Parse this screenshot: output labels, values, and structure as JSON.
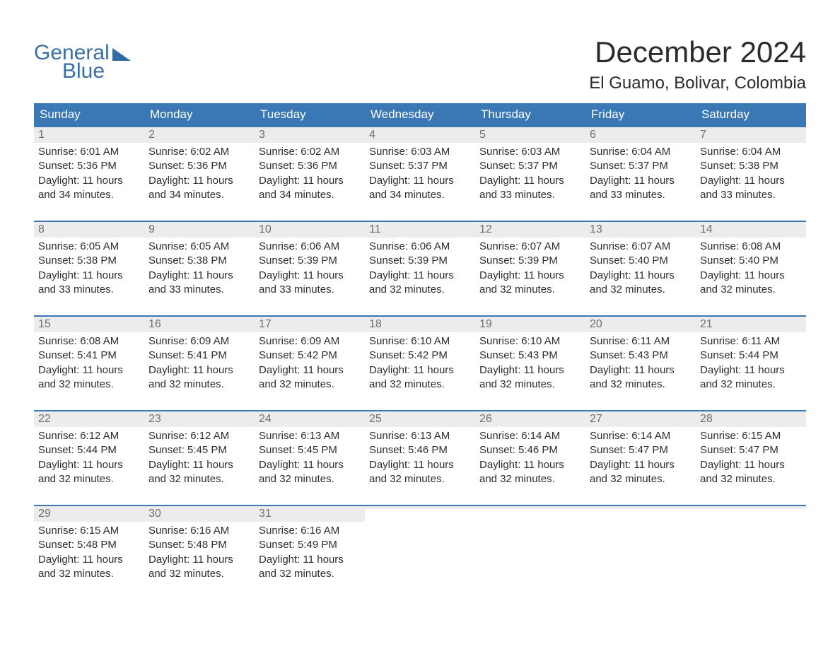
{
  "logo": {
    "line1": "General",
    "line2": "Blue"
  },
  "title": "December 2024",
  "location": "El Guamo, Bolivar, Colombia",
  "colors": {
    "header_bg": "#3a78b5",
    "header_text": "#ffffff",
    "border": "#3a78b5",
    "daynum_bg": "#ececec",
    "daynum_text": "#6f6f6f",
    "body_text": "#2e2e2e",
    "logo_color": "#3a6fa5",
    "background": "#ffffff"
  },
  "day_labels": [
    "Sunday",
    "Monday",
    "Tuesday",
    "Wednesday",
    "Thursday",
    "Friday",
    "Saturday"
  ],
  "first_weekday_index": 0,
  "num_days": 31,
  "days": [
    {
      "n": 1,
      "sunrise": "6:01 AM",
      "sunset": "5:36 PM",
      "daylight": "11 hours and 34 minutes."
    },
    {
      "n": 2,
      "sunrise": "6:02 AM",
      "sunset": "5:36 PM",
      "daylight": "11 hours and 34 minutes."
    },
    {
      "n": 3,
      "sunrise": "6:02 AM",
      "sunset": "5:36 PM",
      "daylight": "11 hours and 34 minutes."
    },
    {
      "n": 4,
      "sunrise": "6:03 AM",
      "sunset": "5:37 PM",
      "daylight": "11 hours and 34 minutes."
    },
    {
      "n": 5,
      "sunrise": "6:03 AM",
      "sunset": "5:37 PM",
      "daylight": "11 hours and 33 minutes."
    },
    {
      "n": 6,
      "sunrise": "6:04 AM",
      "sunset": "5:37 PM",
      "daylight": "11 hours and 33 minutes."
    },
    {
      "n": 7,
      "sunrise": "6:04 AM",
      "sunset": "5:38 PM",
      "daylight": "11 hours and 33 minutes."
    },
    {
      "n": 8,
      "sunrise": "6:05 AM",
      "sunset": "5:38 PM",
      "daylight": "11 hours and 33 minutes."
    },
    {
      "n": 9,
      "sunrise": "6:05 AM",
      "sunset": "5:38 PM",
      "daylight": "11 hours and 33 minutes."
    },
    {
      "n": 10,
      "sunrise": "6:06 AM",
      "sunset": "5:39 PM",
      "daylight": "11 hours and 33 minutes."
    },
    {
      "n": 11,
      "sunrise": "6:06 AM",
      "sunset": "5:39 PM",
      "daylight": "11 hours and 32 minutes."
    },
    {
      "n": 12,
      "sunrise": "6:07 AM",
      "sunset": "5:39 PM",
      "daylight": "11 hours and 32 minutes."
    },
    {
      "n": 13,
      "sunrise": "6:07 AM",
      "sunset": "5:40 PM",
      "daylight": "11 hours and 32 minutes."
    },
    {
      "n": 14,
      "sunrise": "6:08 AM",
      "sunset": "5:40 PM",
      "daylight": "11 hours and 32 minutes."
    },
    {
      "n": 15,
      "sunrise": "6:08 AM",
      "sunset": "5:41 PM",
      "daylight": "11 hours and 32 minutes."
    },
    {
      "n": 16,
      "sunrise": "6:09 AM",
      "sunset": "5:41 PM",
      "daylight": "11 hours and 32 minutes."
    },
    {
      "n": 17,
      "sunrise": "6:09 AM",
      "sunset": "5:42 PM",
      "daylight": "11 hours and 32 minutes."
    },
    {
      "n": 18,
      "sunrise": "6:10 AM",
      "sunset": "5:42 PM",
      "daylight": "11 hours and 32 minutes."
    },
    {
      "n": 19,
      "sunrise": "6:10 AM",
      "sunset": "5:43 PM",
      "daylight": "11 hours and 32 minutes."
    },
    {
      "n": 20,
      "sunrise": "6:11 AM",
      "sunset": "5:43 PM",
      "daylight": "11 hours and 32 minutes."
    },
    {
      "n": 21,
      "sunrise": "6:11 AM",
      "sunset": "5:44 PM",
      "daylight": "11 hours and 32 minutes."
    },
    {
      "n": 22,
      "sunrise": "6:12 AM",
      "sunset": "5:44 PM",
      "daylight": "11 hours and 32 minutes."
    },
    {
      "n": 23,
      "sunrise": "6:12 AM",
      "sunset": "5:45 PM",
      "daylight": "11 hours and 32 minutes."
    },
    {
      "n": 24,
      "sunrise": "6:13 AM",
      "sunset": "5:45 PM",
      "daylight": "11 hours and 32 minutes."
    },
    {
      "n": 25,
      "sunrise": "6:13 AM",
      "sunset": "5:46 PM",
      "daylight": "11 hours and 32 minutes."
    },
    {
      "n": 26,
      "sunrise": "6:14 AM",
      "sunset": "5:46 PM",
      "daylight": "11 hours and 32 minutes."
    },
    {
      "n": 27,
      "sunrise": "6:14 AM",
      "sunset": "5:47 PM",
      "daylight": "11 hours and 32 minutes."
    },
    {
      "n": 28,
      "sunrise": "6:15 AM",
      "sunset": "5:47 PM",
      "daylight": "11 hours and 32 minutes."
    },
    {
      "n": 29,
      "sunrise": "6:15 AM",
      "sunset": "5:48 PM",
      "daylight": "11 hours and 32 minutes."
    },
    {
      "n": 30,
      "sunrise": "6:16 AM",
      "sunset": "5:48 PM",
      "daylight": "11 hours and 32 minutes."
    },
    {
      "n": 31,
      "sunrise": "6:16 AM",
      "sunset": "5:49 PM",
      "daylight": "11 hours and 32 minutes."
    }
  ],
  "labels": {
    "sunrise_prefix": "Sunrise: ",
    "sunset_prefix": "Sunset: ",
    "daylight_prefix": "Daylight: "
  }
}
